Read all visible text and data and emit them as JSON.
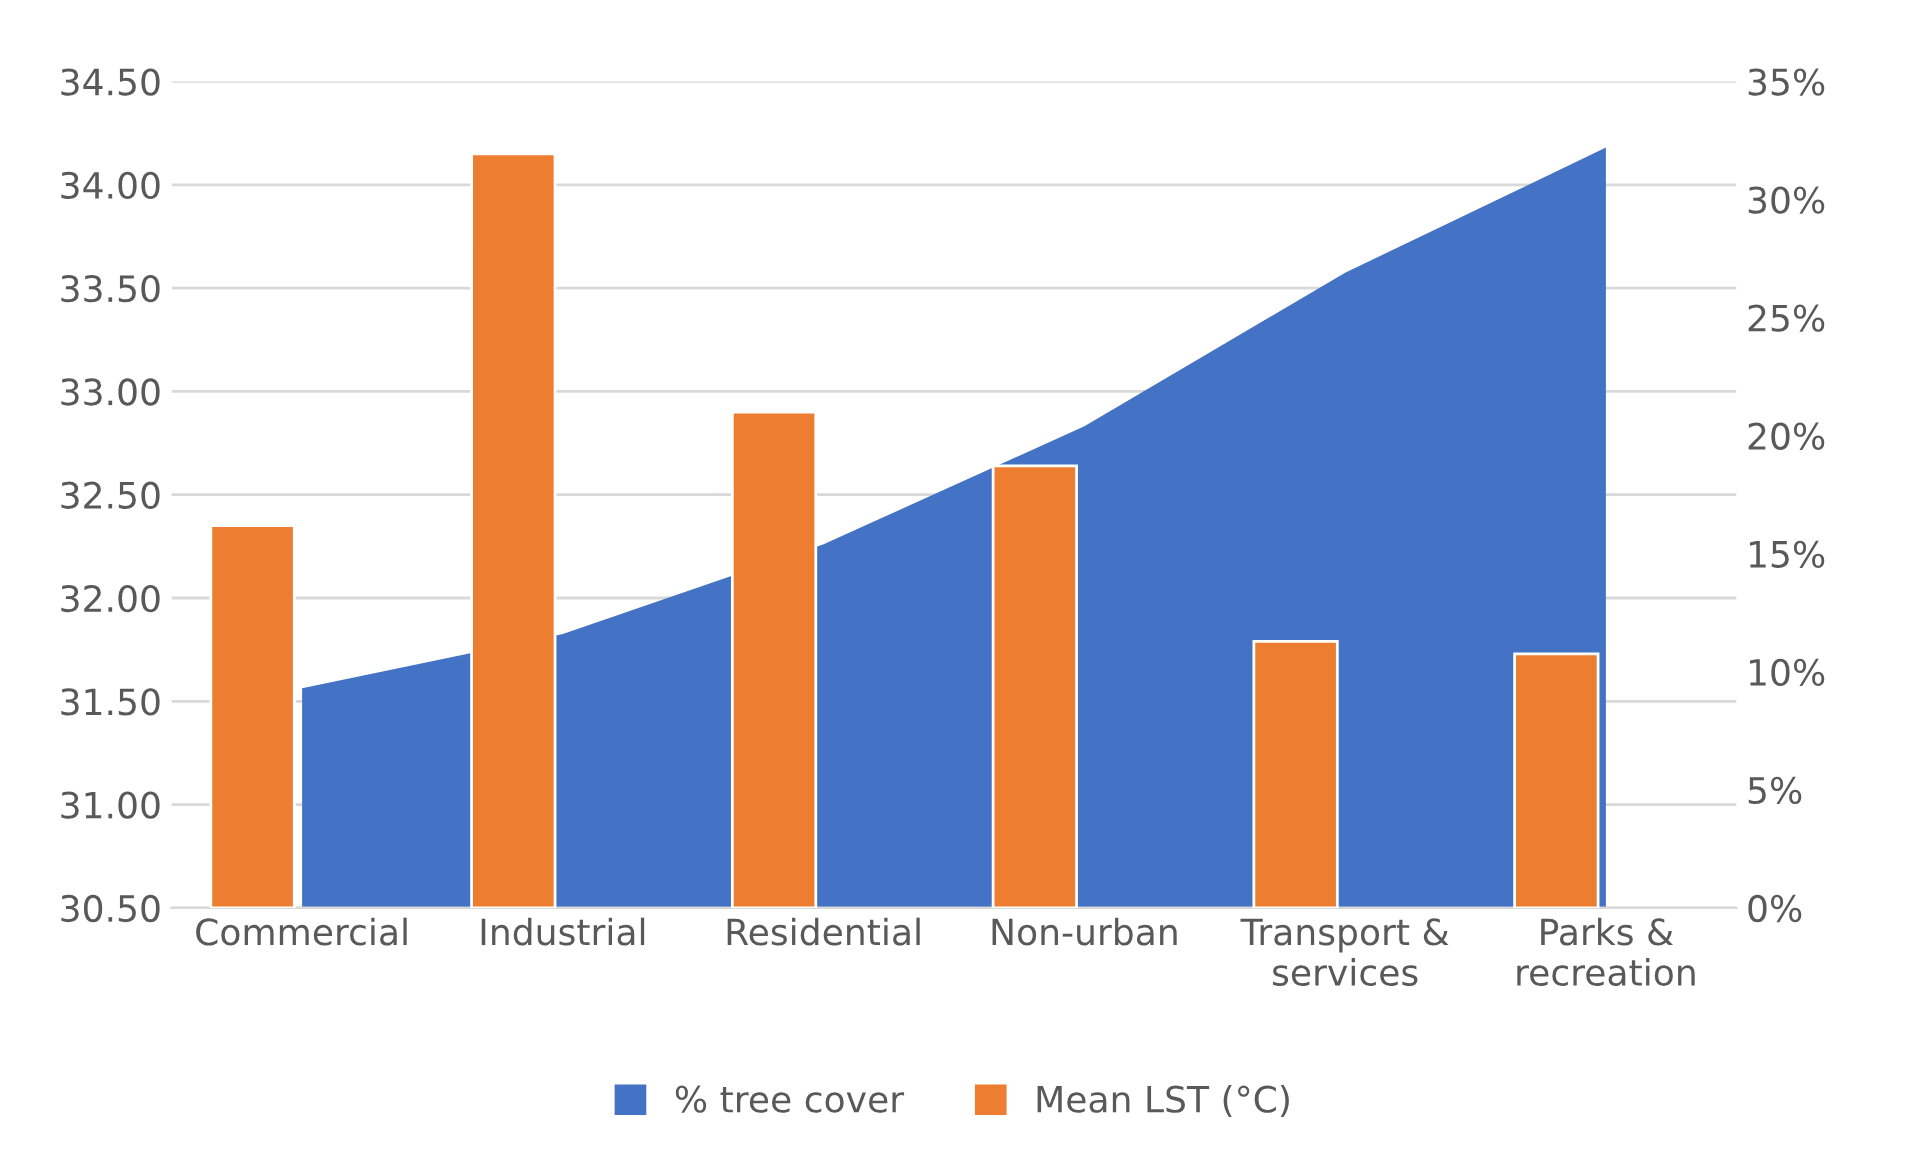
{
  "chart_data": {
    "type": "bar",
    "categories": [
      "Commercial",
      "Industrial",
      "Residential",
      "Non-urban",
      "Transport &\nservices",
      "Parks &\nrecreation"
    ],
    "series": [
      {
        "name": "% tree cover",
        "type": "area",
        "axis": "y2",
        "color": "#4472c4",
        "values": [
          9.3,
          11.6,
          15.4,
          20.4,
          26.9,
          32.2
        ]
      },
      {
        "name": "Mean LST (°C)",
        "color": "#ed7d31",
        "values": [
          32.35,
          34.15,
          32.9,
          32.64,
          31.79,
          31.73
        ]
      }
    ],
    "ylim": [
      30.5,
      34.5
    ],
    "yticks": [
      {
        "value": 30.5,
        "label": "30.50"
      },
      {
        "value": 31,
        "label": "31.00"
      },
      {
        "value": 31.5,
        "label": "31.50"
      },
      {
        "value": 32,
        "label": "32.00"
      },
      {
        "value": 32.5,
        "label": "32.50"
      },
      {
        "value": 33,
        "label": "33.00"
      },
      {
        "value": 33.5,
        "label": "33.50"
      },
      {
        "value": 34,
        "label": "34.00"
      },
      {
        "value": 34.5,
        "label": "34.50"
      }
    ],
    "y2lim": [
      0,
      35
    ],
    "y2ticks": [
      {
        "value": 0,
        "label": "0%"
      },
      {
        "value": 5,
        "label": "5%"
      },
      {
        "value": 10,
        "label": "10%"
      },
      {
        "value": 15,
        "label": "15%"
      },
      {
        "value": 20,
        "label": "20%"
      },
      {
        "value": 25,
        "label": "25%"
      },
      {
        "value": 30,
        "label": "30%"
      },
      {
        "value": 35,
        "label": "35%"
      }
    ],
    "grid": "y",
    "legend": "bottom"
  }
}
